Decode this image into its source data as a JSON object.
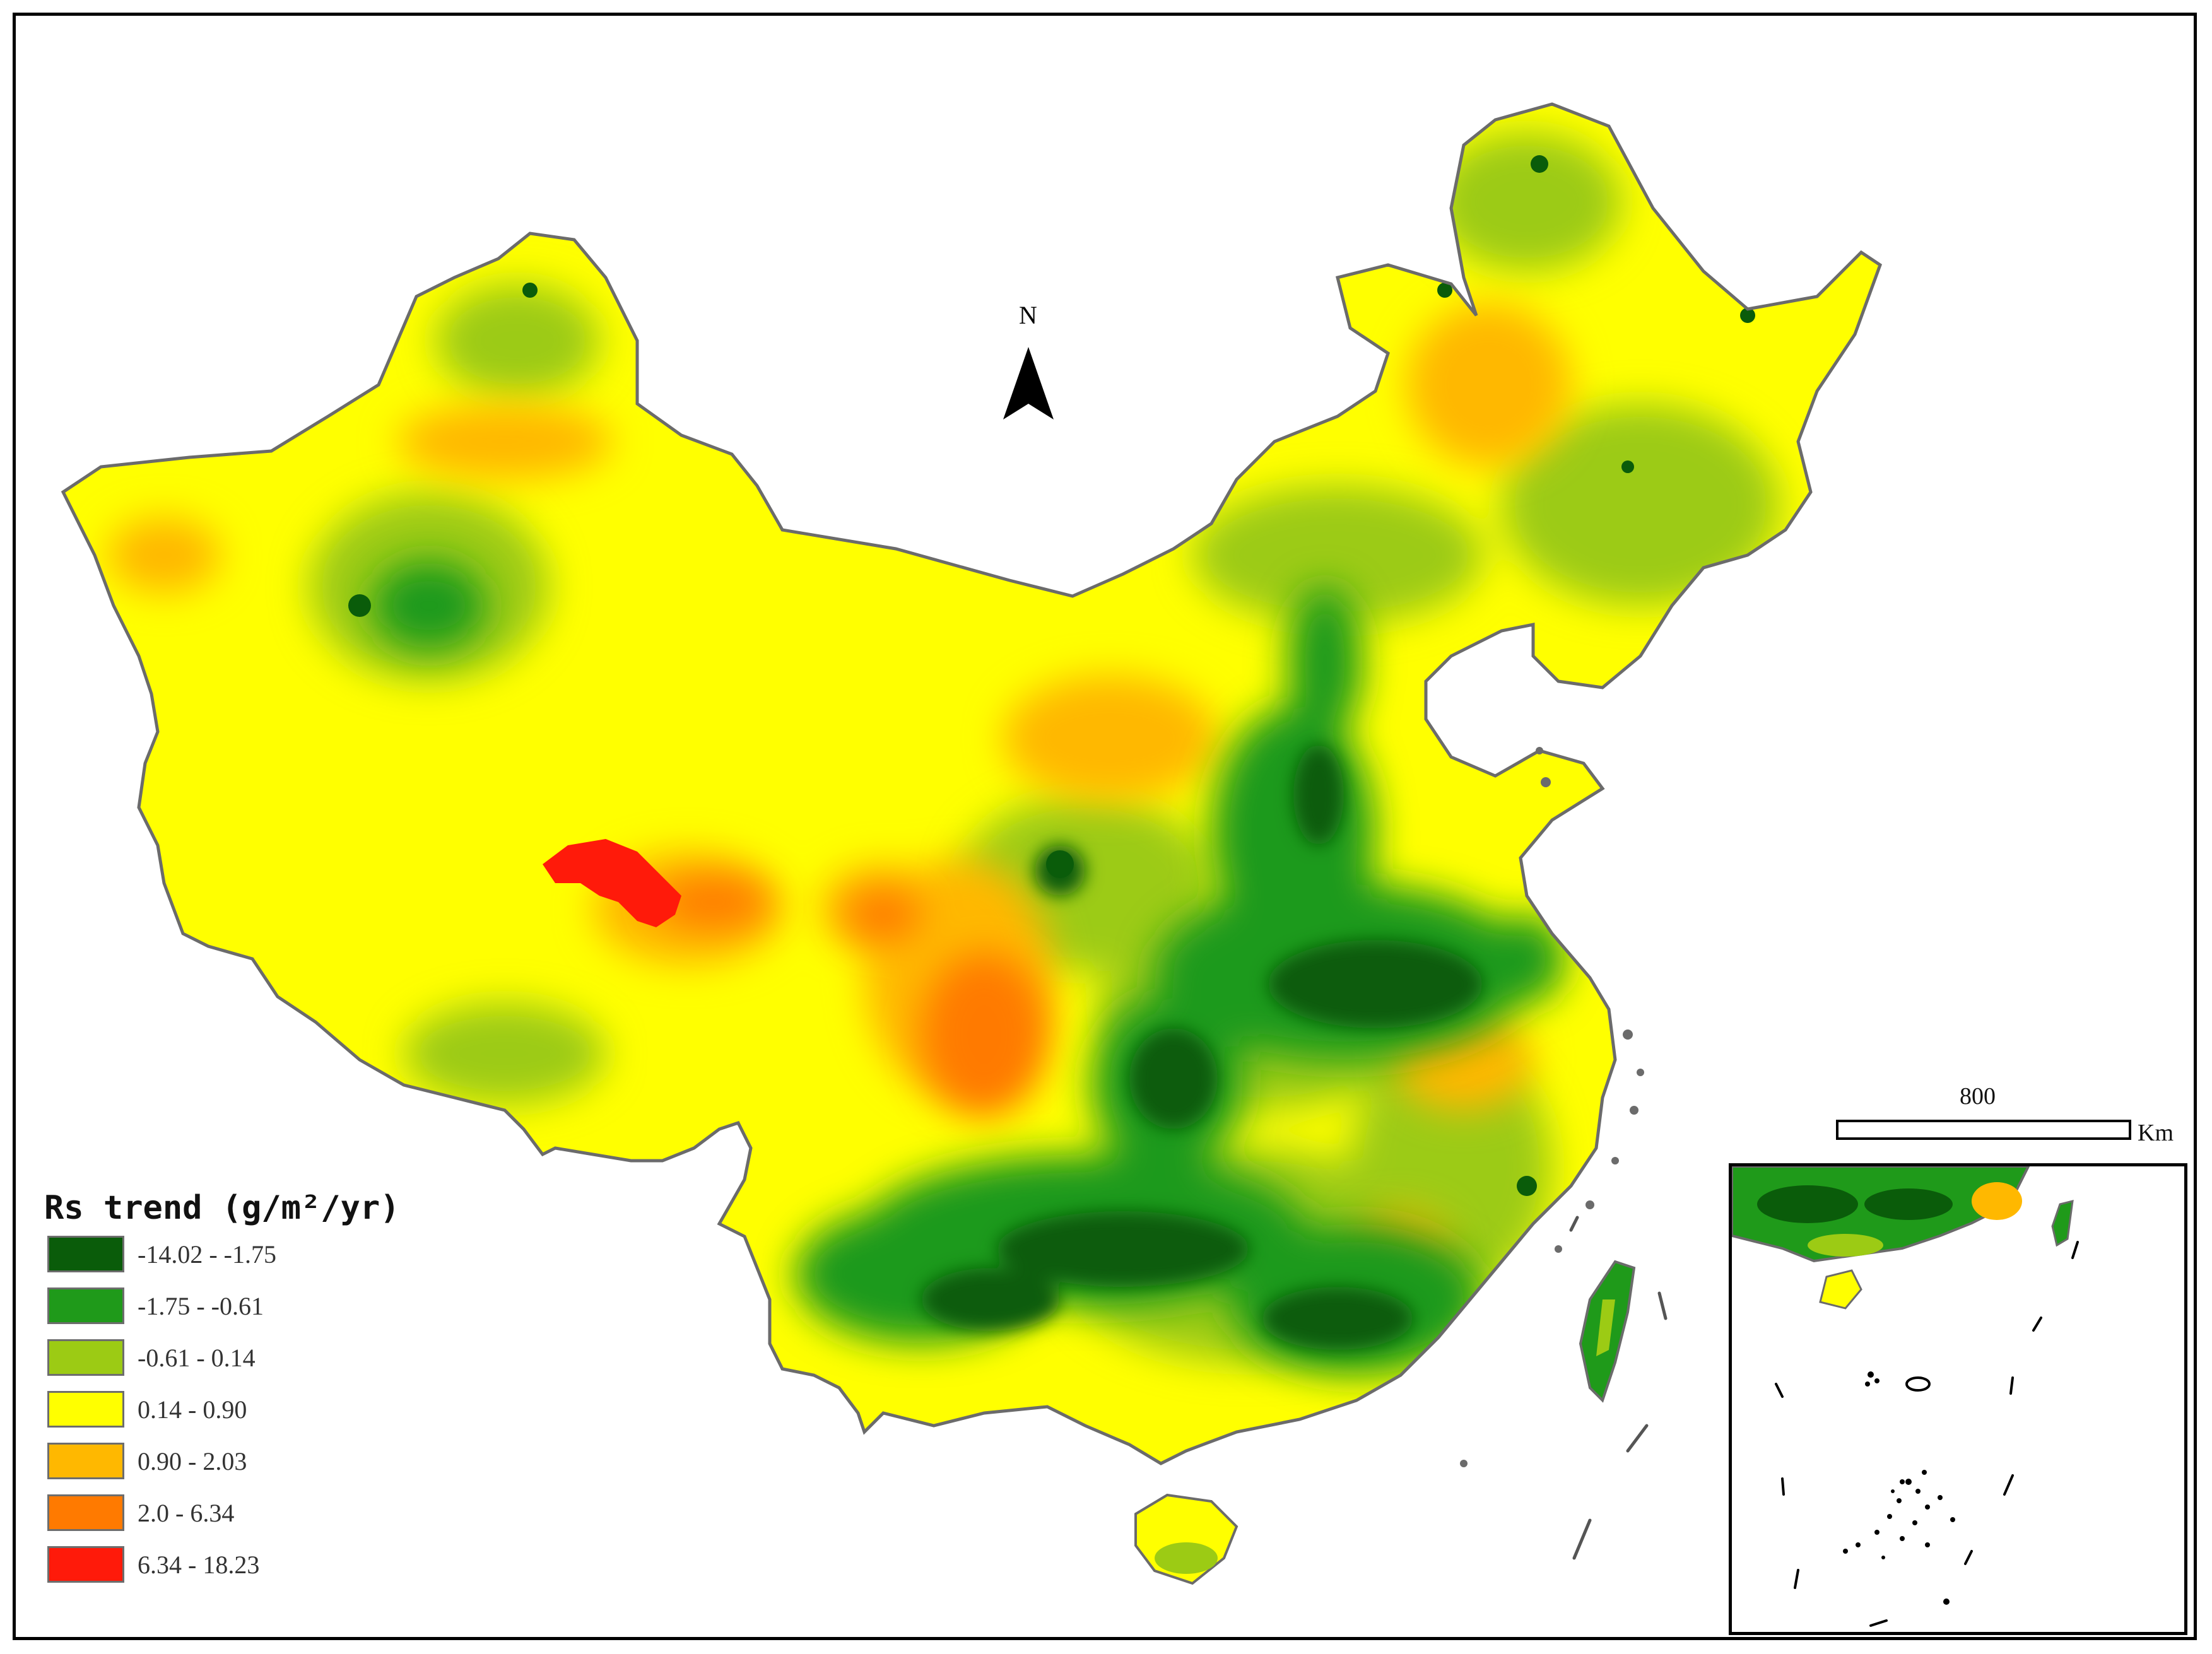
{
  "map": {
    "legend_title": "Rs trend (g/m²/yr)",
    "legend": [
      {
        "range": "-14.02 - -1.75",
        "color": "#0a5c0a"
      },
      {
        "range": "-1.75 - -0.61",
        "color": "#1f9a1a"
      },
      {
        "range": "-0.61 - 0.14",
        "color": "#9ccb14"
      },
      {
        "range": "0.14 - 0.90",
        "color": "#ffff00"
      },
      {
        "range": "0.90 - 2.03",
        "color": "#ffb800"
      },
      {
        "range": "2.0 - 6.34",
        "color": "#ff7a00"
      },
      {
        "range": "6.34 - 18.23",
        "color": "#ff1a0a"
      }
    ],
    "north_arrow": "N",
    "scale_value": "800",
    "scale_unit": "Km"
  }
}
